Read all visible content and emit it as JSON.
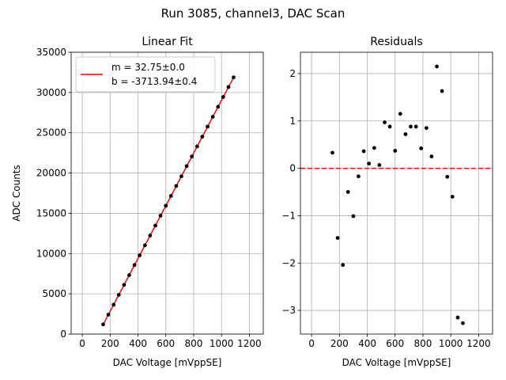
{
  "figure": {
    "suptitle": "Run 3085, channel3, DAC Scan"
  },
  "colors": {
    "fit_line": "#ff0000",
    "points": "#000000",
    "grid": "#b0b0b0",
    "zero_line": "#ff0000"
  },
  "chart_data": [
    {
      "type": "scatter",
      "title": "Linear Fit",
      "xlabel": "DAC Voltage [mVppSE]",
      "ylabel": "ADC Counts",
      "xlim": [
        -80,
        1300
      ],
      "ylim": [
        0,
        35000
      ],
      "xticks": [
        0,
        200,
        400,
        600,
        800,
        1000,
        1200
      ],
      "yticks": [
        0,
        5000,
        10000,
        15000,
        20000,
        25000,
        30000,
        35000
      ],
      "grid": true,
      "legend": {
        "placement": "top-left",
        "entries": [
          "m = 32.75±0.0",
          "b = -3713.94±0.4"
        ]
      },
      "fit": {
        "slope": 32.75,
        "intercept": -3713.94,
        "x_range": [
          150,
          1090
        ]
      },
      "x": [
        150,
        187,
        225,
        262,
        300,
        337,
        375,
        412,
        450,
        487,
        525,
        562,
        600,
        637,
        675,
        712,
        750,
        787,
        825,
        862,
        900,
        937,
        975,
        1012,
        1050,
        1087
      ],
      "y": [
        1200,
        2410,
        3650,
        4870,
        6110,
        7320,
        8570,
        9780,
        11020,
        12240,
        13480,
        14700,
        15940,
        17150,
        18400,
        19600,
        20860,
        22060,
        23310,
        24520,
        25770,
        26980,
        28220,
        29440,
        30680,
        31880
      ]
    },
    {
      "type": "scatter",
      "title": "Residuals",
      "xlabel": "DAC Voltage [mVppSE]",
      "ylabel": "",
      "xlim": [
        -80,
        1300
      ],
      "ylim": [
        -3.5,
        2.45
      ],
      "xticks": [
        0,
        200,
        400,
        600,
        800,
        1000,
        1200
      ],
      "yticks": [
        -3,
        -2,
        -1,
        0,
        1,
        2
      ],
      "grid": true,
      "reference_line": 0,
      "x": [
        150,
        187,
        225,
        262,
        300,
        337,
        375,
        412,
        450,
        487,
        525,
        562,
        600,
        637,
        675,
        712,
        750,
        787,
        825,
        862,
        900,
        937,
        975,
        1012,
        1050,
        1087
      ],
      "y": [
        0.33,
        -1.47,
        -2.04,
        -0.5,
        -1.01,
        -0.17,
        0.36,
        0.1,
        0.43,
        0.07,
        0.97,
        0.88,
        0.37,
        1.15,
        0.72,
        0.88,
        0.88,
        0.42,
        0.85,
        0.25,
        2.15,
        1.63,
        -0.18,
        -0.6,
        -3.15,
        -3.27
      ]
    }
  ]
}
